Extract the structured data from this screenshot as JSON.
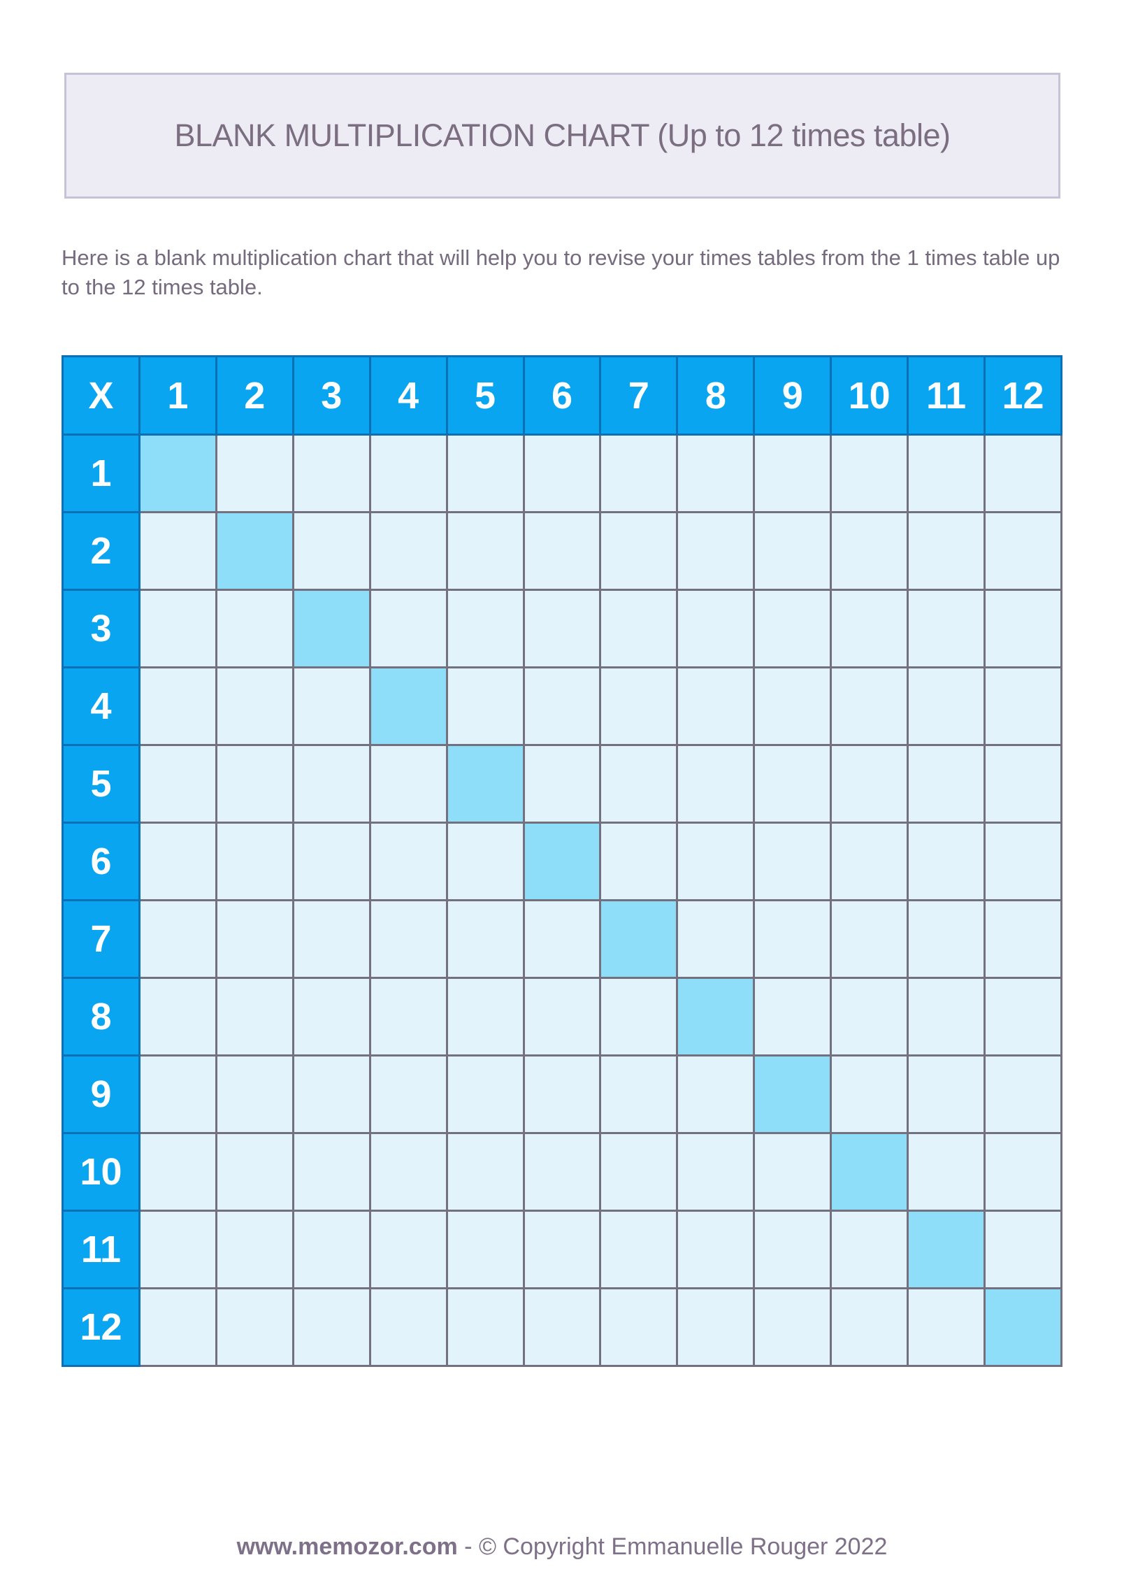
{
  "header": {
    "title": "BLANK MULTIPLICATION CHART (Up to 12 times table)"
  },
  "intro": {
    "text": "Here is a blank multiplication chart that will help you to revise your times tables from the 1 times table up to the 12 times table."
  },
  "table": {
    "corner_label": "X",
    "column_headers": [
      "1",
      "2",
      "3",
      "4",
      "5",
      "6",
      "7",
      "8",
      "9",
      "10",
      "11",
      "12"
    ],
    "row_headers": [
      "1",
      "2",
      "3",
      "4",
      "5",
      "6",
      "7",
      "8",
      "9",
      "10",
      "11",
      "12"
    ],
    "cell_value": "",
    "highlight_rule": "diagonal cells where row equals column"
  },
  "footer": {
    "site": "www.memozor.com",
    "separator": " - ",
    "copyright": "© Copyright Emmanuelle Rouger 2022"
  },
  "colors": {
    "header_cell": "#09a5f1",
    "header_border": "#0e70b4",
    "diagonal_cell": "#8eddf9",
    "empty_cell": "#e3f3fb",
    "grid_border": "#73707f",
    "title_box_bg": "#edecf5",
    "title_box_border": "#c6c3d6",
    "title_text": "#7b6e81",
    "body_text": "#756a7e",
    "footer_text": "#7d7088"
  }
}
